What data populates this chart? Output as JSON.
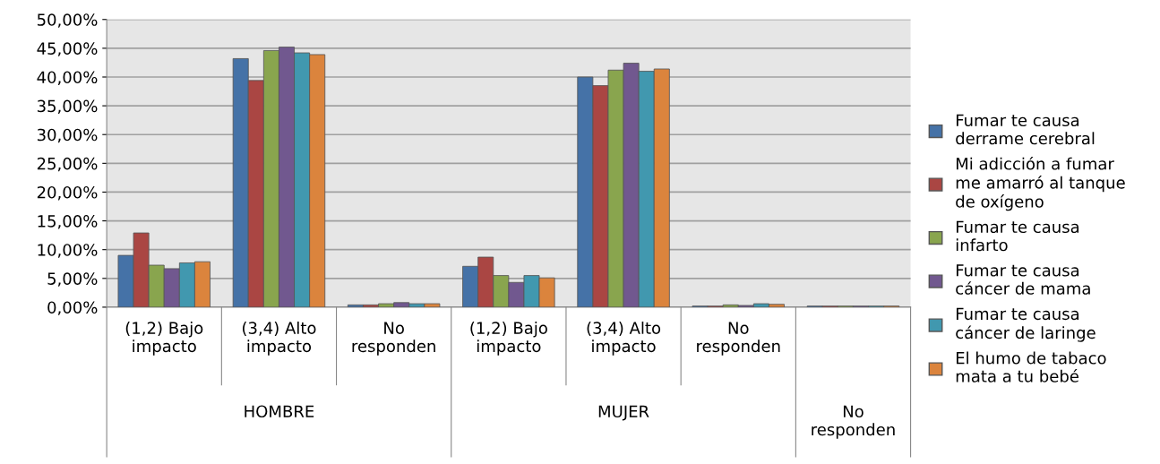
{
  "chart_data": {
    "type": "bar",
    "categories": [
      "(1,2) Bajo\nimpacto",
      "(3,4) Alto\nimpacto",
      "No\nresponden",
      "(1,2) Bajo\nimpacto",
      "(3,4) Alto\nimpacto",
      "No\nresponden",
      null
    ],
    "annotations": [
      "HOMBRE",
      "MUJER",
      "No\nresponden"
    ],
    "series": [
      {
        "name": "Fumar te causa\nderrame cerebral",
        "color": "#4572a7",
        "values": [
          9.0,
          43.2,
          0.4,
          7.1,
          40.0,
          0.2,
          0.2
        ]
      },
      {
        "name": "Mi adicción a fumar\nme amarró al tanque\nde oxígeno",
        "color": "#aa4643",
        "values": [
          12.9,
          39.4,
          0.4,
          8.7,
          38.5,
          0.2,
          0.2
        ]
      },
      {
        "name": "Fumar te causa\ninfarto",
        "color": "#89a54e",
        "values": [
          7.3,
          44.6,
          0.6,
          5.5,
          41.2,
          0.4,
          0.2
        ]
      },
      {
        "name": "Fumar te causa\ncáncer de mama",
        "color": "#71588f",
        "values": [
          6.7,
          45.2,
          0.8,
          4.3,
          42.4,
          0.3,
          0.2
        ]
      },
      {
        "name": "Fumar te causa\ncáncer de laringe",
        "color": "#4198af",
        "values": [
          7.7,
          44.2,
          0.6,
          5.5,
          41.0,
          0.6,
          0.2
        ]
      },
      {
        "name": "El humo de tabaco\nmata a tu bebé",
        "color": "#db843d",
        "values": [
          7.9,
          43.9,
          0.6,
          5.1,
          41.4,
          0.5,
          0.2
        ]
      }
    ],
    "ylim": [
      0,
      50
    ],
    "yticks": [
      {
        "value": 0,
        "label": "0,00%"
      },
      {
        "value": 5,
        "label": "5,00%"
      },
      {
        "value": 10,
        "label": "10,00%"
      },
      {
        "value": 15,
        "label": "15,00%"
      },
      {
        "value": 20,
        "label": "20,00%"
      },
      {
        "value": 25,
        "label": "25,00%"
      },
      {
        "value": 30,
        "label": "30,00%"
      },
      {
        "value": 35,
        "label": "35,00%"
      },
      {
        "value": 40,
        "label": "40,00%"
      },
      {
        "value": 45,
        "label": "45,00%"
      },
      {
        "value": 50,
        "label": "50,00%"
      }
    ],
    "grid": "y",
    "legend": "right"
  }
}
